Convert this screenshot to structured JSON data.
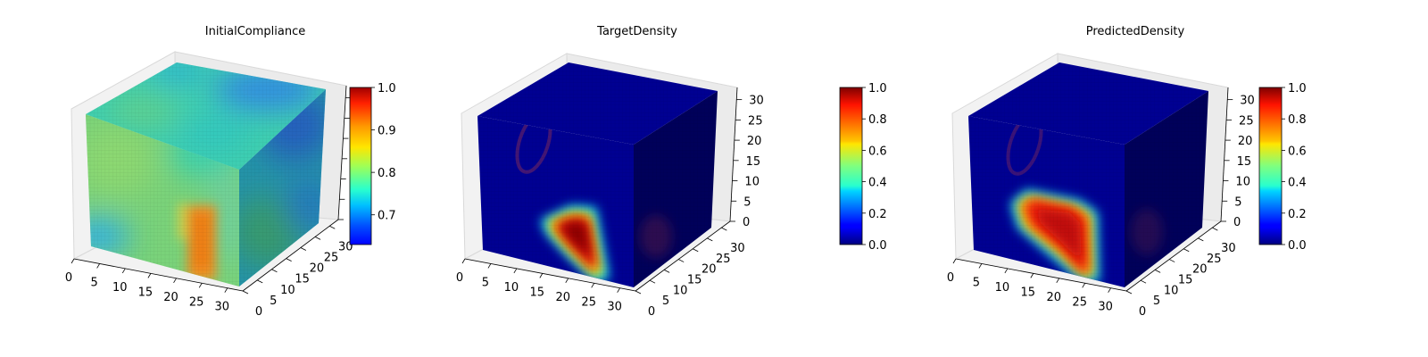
{
  "colors": {
    "jet_low": "#00007f",
    "jet_mid": "#7fff7f",
    "jet_high": "#7f0000",
    "pane": "#f2f2f2",
    "pane_line": "#d9d9d9"
  },
  "chart_data": [
    {
      "type": "heatmap",
      "title": "InitialCompliance",
      "colormap": "jet",
      "x_ticks": [
        "0",
        "5",
        "10",
        "15",
        "20",
        "25",
        "30"
      ],
      "y_ticks": [
        "0",
        "5",
        "10",
        "15",
        "20",
        "25",
        "30"
      ],
      "z_ticks": [],
      "colorbar": {
        "min": 0.63,
        "max": 1.0,
        "ticks": [
          "0.7",
          "0.8",
          "0.9",
          "1.0"
        ],
        "tick_values": [
          0.7,
          0.8,
          0.9,
          1.0
        ]
      }
    },
    {
      "type": "heatmap",
      "title": "TargetDensity",
      "colormap": "jet",
      "x_ticks": [
        "0",
        "5",
        "10",
        "15",
        "20",
        "25",
        "30"
      ],
      "y_ticks": [
        "0",
        "5",
        "10",
        "15",
        "20",
        "25",
        "30"
      ],
      "z_ticks": [
        "0",
        "5",
        "10",
        "15",
        "20",
        "25",
        "30"
      ],
      "colorbar": {
        "min": 0.0,
        "max": 1.0,
        "ticks": [
          "0.0",
          "0.2",
          "0.4",
          "0.6",
          "0.8",
          "1.0"
        ],
        "tick_values": [
          0.0,
          0.2,
          0.4,
          0.6,
          0.8,
          1.0
        ]
      }
    },
    {
      "type": "heatmap",
      "title": "PredictedDensity",
      "colormap": "jet",
      "x_ticks": [
        "0",
        "5",
        "10",
        "15",
        "20",
        "25",
        "30"
      ],
      "y_ticks": [
        "0",
        "5",
        "10",
        "15",
        "20",
        "25",
        "30"
      ],
      "z_ticks": [
        "0",
        "5",
        "10",
        "15",
        "20",
        "25",
        "30"
      ],
      "colorbar": {
        "min": 0.0,
        "max": 1.0,
        "ticks": [
          "0.0",
          "0.2",
          "0.4",
          "0.6",
          "0.8",
          "1.0"
        ],
        "tick_values": [
          0.0,
          0.2,
          0.4,
          0.6,
          0.8,
          1.0
        ]
      }
    }
  ]
}
